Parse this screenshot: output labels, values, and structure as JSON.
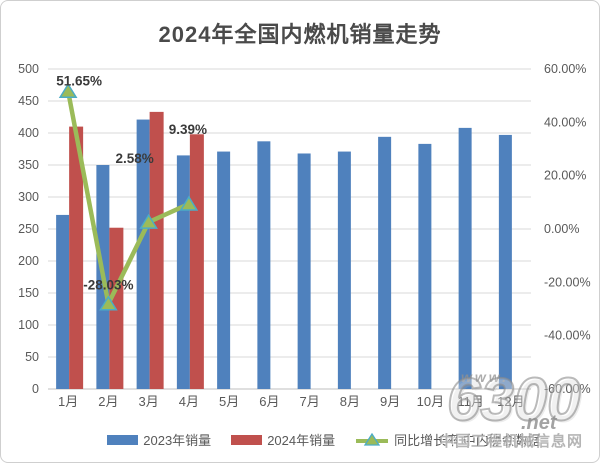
{
  "chart_data": {
    "type": "combo",
    "title": "2024年全国内燃机销量走势",
    "categories": [
      "1月",
      "2月",
      "3月",
      "4月",
      "5月",
      "6月",
      "7月",
      "8月",
      "9月",
      "10月",
      "11月",
      "12月"
    ],
    "series": [
      {
        "name": "2023年销量",
        "type": "bar",
        "color": "#4F81BD",
        "values": [
          272,
          350,
          421,
          365,
          371,
          387,
          368,
          371,
          394,
          383,
          408,
          397
        ]
      },
      {
        "name": "2024年销量",
        "type": "bar",
        "color": "#C0504D",
        "values": [
          410,
          252,
          433,
          398,
          null,
          null,
          null,
          null,
          null,
          null,
          null,
          null
        ]
      },
      {
        "name": "同比增长率 中内协会数据",
        "type": "line",
        "axis": "right",
        "color": "#9BBB59",
        "marker_edge": "#4BACC6",
        "values": [
          51.65,
          -28.03,
          2.58,
          9.39,
          null,
          null,
          null,
          null,
          null,
          null,
          null,
          null
        ],
        "point_labels": [
          "51.65%",
          "-28.03%",
          "2.58%",
          "9.39%",
          "",
          "",
          "",
          "",
          "",
          "",
          "",
          ""
        ]
      }
    ],
    "left_axis": {
      "min": 0,
      "max": 500,
      "step": 50
    },
    "right_axis": {
      "min": -60,
      "max": 60,
      "step": 20,
      "tick_labels": [
        "60.00%",
        "40.00%",
        "20.00%",
        "0.00%",
        "-20.00%",
        "-40.00%",
        "-60.00%"
      ]
    },
    "grid": true,
    "legend_position": "bottom"
  },
  "colors": {
    "grid": "#D9D9D9",
    "axis_line": "#BFBFBF",
    "axis_text": "#595959",
    "title_text": "#4a4a4a",
    "data_label_text": "#3a3a3a"
  },
  "watermark": {
    "www": "www.",
    "number": "6300",
    "net": ".net",
    "site": "中国工程机械信息网"
  }
}
